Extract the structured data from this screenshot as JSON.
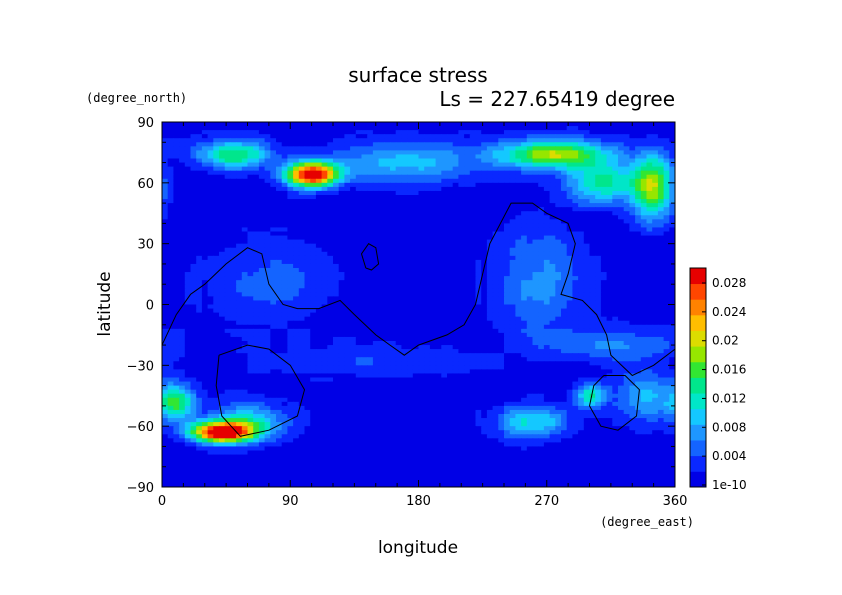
{
  "chart_data": {
    "type": "heatmap",
    "title": "surface stress",
    "subtitle": "Ls = 227.65419 degree",
    "xlabel": "longitude",
    "ylabel": "latitude",
    "x_units": "(degree_east)",
    "y_units": "(degree_north)",
    "xlim": [
      0,
      360
    ],
    "ylim": [
      -90,
      90
    ],
    "x_ticks": [
      "0",
      "90",
      "180",
      "270",
      "360"
    ],
    "y_ticks": [
      "90",
      "60",
      "30",
      "0",
      "−30",
      "−60",
      "−90"
    ],
    "colorbar": {
      "labels": [
        "0.028",
        "0.024",
        "0.02",
        "0.016",
        "0.012",
        "0.008",
        "0.004",
        "1e-10"
      ],
      "range": [
        0,
        0.03
      ],
      "colors": [
        "#0000e6",
        "#0a28ff",
        "#1464ff",
        "#1e96ff",
        "#14c8ff",
        "#00e6c8",
        "#00e68c",
        "#32e632",
        "#96e600",
        "#dcdc00",
        "#ffbe00",
        "#ff8200",
        "#ff4600",
        "#e60000"
      ]
    },
    "field_features": [
      {
        "lon": 105,
        "lat": 64,
        "slon": 18,
        "slat": 6,
        "value": 0.03
      },
      {
        "lon": 50,
        "lat": 74,
        "slon": 25,
        "slat": 7,
        "value": 0.014
      },
      {
        "lon": 170,
        "lat": 70,
        "slon": 55,
        "slat": 10,
        "value": 0.008
      },
      {
        "lon": 275,
        "lat": 74,
        "slon": 38,
        "slat": 7,
        "value": 0.018
      },
      {
        "lon": 345,
        "lat": 58,
        "slon": 14,
        "slat": 16,
        "value": 0.017
      },
      {
        "lon": 310,
        "lat": 60,
        "slon": 25,
        "slat": 10,
        "value": 0.012
      },
      {
        "lon": 42,
        "lat": -63,
        "slon": 22,
        "slat": 5,
        "value": 0.03
      },
      {
        "lon": 60,
        "lat": -58,
        "slon": 28,
        "slat": 9,
        "value": 0.01
      },
      {
        "lon": 10,
        "lat": -48,
        "slon": 12,
        "slat": 8,
        "value": 0.014
      },
      {
        "lon": 265,
        "lat": 10,
        "slon": 30,
        "slat": 28,
        "value": 0.006
      },
      {
        "lon": 260,
        "lat": -58,
        "slon": 25,
        "slat": 8,
        "value": 0.01
      },
      {
        "lon": 340,
        "lat": -45,
        "slon": 22,
        "slat": 12,
        "value": 0.008
      },
      {
        "lon": 300,
        "lat": -45,
        "slon": 10,
        "slat": 6,
        "value": 0.012
      },
      {
        "lon": 320,
        "lat": -20,
        "slon": 40,
        "slat": 8,
        "value": 0.006
      },
      {
        "lon": 140,
        "lat": -28,
        "slon": 70,
        "slat": 8,
        "value": 0.003
      },
      {
        "lon": 75,
        "lat": 10,
        "slon": 45,
        "slat": 20,
        "value": 0.004
      }
    ],
    "topography_contours": [
      {
        "name": "tharsis-outline",
        "points": [
          [
            0,
            -20
          ],
          [
            10,
            -5
          ],
          [
            20,
            5
          ],
          [
            30,
            10
          ],
          [
            45,
            20
          ],
          [
            60,
            28
          ],
          [
            70,
            25
          ],
          [
            75,
            10
          ],
          [
            85,
            0
          ],
          [
            95,
            -2
          ],
          [
            110,
            -2
          ],
          [
            125,
            2
          ],
          [
            135,
            -5
          ],
          [
            150,
            -15
          ],
          [
            160,
            -20
          ],
          [
            170,
            -25
          ],
          [
            180,
            -20
          ],
          [
            200,
            -15
          ],
          [
            212,
            -10
          ],
          [
            220,
            0
          ],
          [
            225,
            15
          ],
          [
            230,
            30
          ],
          [
            245,
            50
          ],
          [
            260,
            50
          ],
          [
            270,
            45
          ],
          [
            285,
            40
          ],
          [
            290,
            30
          ],
          [
            285,
            15
          ],
          [
            280,
            5
          ],
          [
            295,
            2
          ],
          [
            305,
            -5
          ],
          [
            312,
            -15
          ],
          [
            315,
            -25
          ],
          [
            330,
            -35
          ],
          [
            345,
            -30
          ],
          [
            360,
            -22
          ]
        ]
      },
      {
        "name": "elysium-outline",
        "points": [
          [
            143,
            18
          ],
          [
            140,
            25
          ],
          [
            145,
            30
          ],
          [
            150,
            28
          ],
          [
            152,
            20
          ],
          [
            147,
            17
          ],
          [
            143,
            18
          ]
        ]
      },
      {
        "name": "hellas-outline",
        "points": [
          [
            40,
            -25
          ],
          [
            60,
            -20
          ],
          [
            75,
            -22
          ],
          [
            90,
            -30
          ],
          [
            100,
            -42
          ],
          [
            95,
            -55
          ],
          [
            75,
            -62
          ],
          [
            55,
            -65
          ],
          [
            42,
            -55
          ],
          [
            38,
            -40
          ],
          [
            40,
            -25
          ]
        ]
      },
      {
        "name": "argyre-outline",
        "points": [
          [
            310,
            -35
          ],
          [
            325,
            -35
          ],
          [
            335,
            -42
          ],
          [
            333,
            -55
          ],
          [
            320,
            -62
          ],
          [
            308,
            -60
          ],
          [
            300,
            -50
          ],
          [
            303,
            -40
          ],
          [
            310,
            -35
          ]
        ]
      }
    ]
  }
}
